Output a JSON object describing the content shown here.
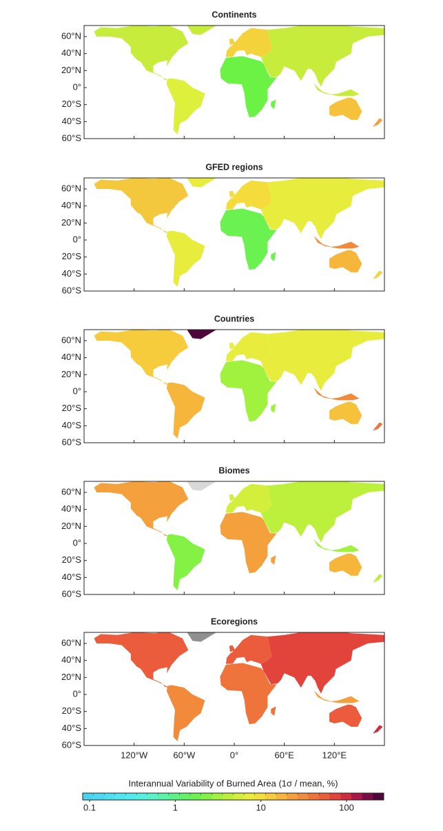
{
  "panels": [
    {
      "title": "Continents"
    },
    {
      "title": "GFED regions"
    },
    {
      "title": "Countries"
    },
    {
      "title": "Biomes"
    },
    {
      "title": "Ecoregions"
    }
  ],
  "axes": {
    "xlim": [
      -180,
      180
    ],
    "ylim": [
      -60,
      73
    ],
    "xticks": [
      {
        "value": -120,
        "label": "120°W"
      },
      {
        "value": -60,
        "label": "60°W"
      },
      {
        "value": 0,
        "label": "0°"
      },
      {
        "value": 60,
        "label": "60°E"
      },
      {
        "value": 120,
        "label": "120°E"
      }
    ],
    "yticks": [
      {
        "value": 60,
        "label": "60°N"
      },
      {
        "value": 40,
        "label": "40°N"
      },
      {
        "value": 20,
        "label": "20°N"
      },
      {
        "value": 0,
        "label": "0°"
      },
      {
        "value": -20,
        "label": "20°S"
      },
      {
        "value": -40,
        "label": "40°S"
      },
      {
        "value": -60,
        "label": "60°S"
      }
    ]
  },
  "colorbar": {
    "label": "Interannual Variability of Burned Area (1σ / mean, %)",
    "log": true,
    "lim": [
      0.083,
      272
    ],
    "ticks": [
      0.1,
      1,
      10,
      100
    ],
    "colors": [
      "#4ad3ee",
      "#4cd8f0",
      "#4edff2",
      "#50e6f2",
      "#52ecef",
      "#55f0e0",
      "#58f2c8",
      "#5cf3a8",
      "#5ef38a",
      "#62f26a",
      "#6cf250",
      "#84f244",
      "#a0f23e",
      "#bcf03c",
      "#d4ee3c",
      "#e8ec3c",
      "#f4e03c",
      "#f6cc3c",
      "#f6b63c",
      "#f4a03c",
      "#f28a3c",
      "#ef743c",
      "#ea5c3c",
      "#e2443c",
      "#cf2c40",
      "#a8184a",
      "#7a0c46",
      "#4e063c"
    ]
  }
}
